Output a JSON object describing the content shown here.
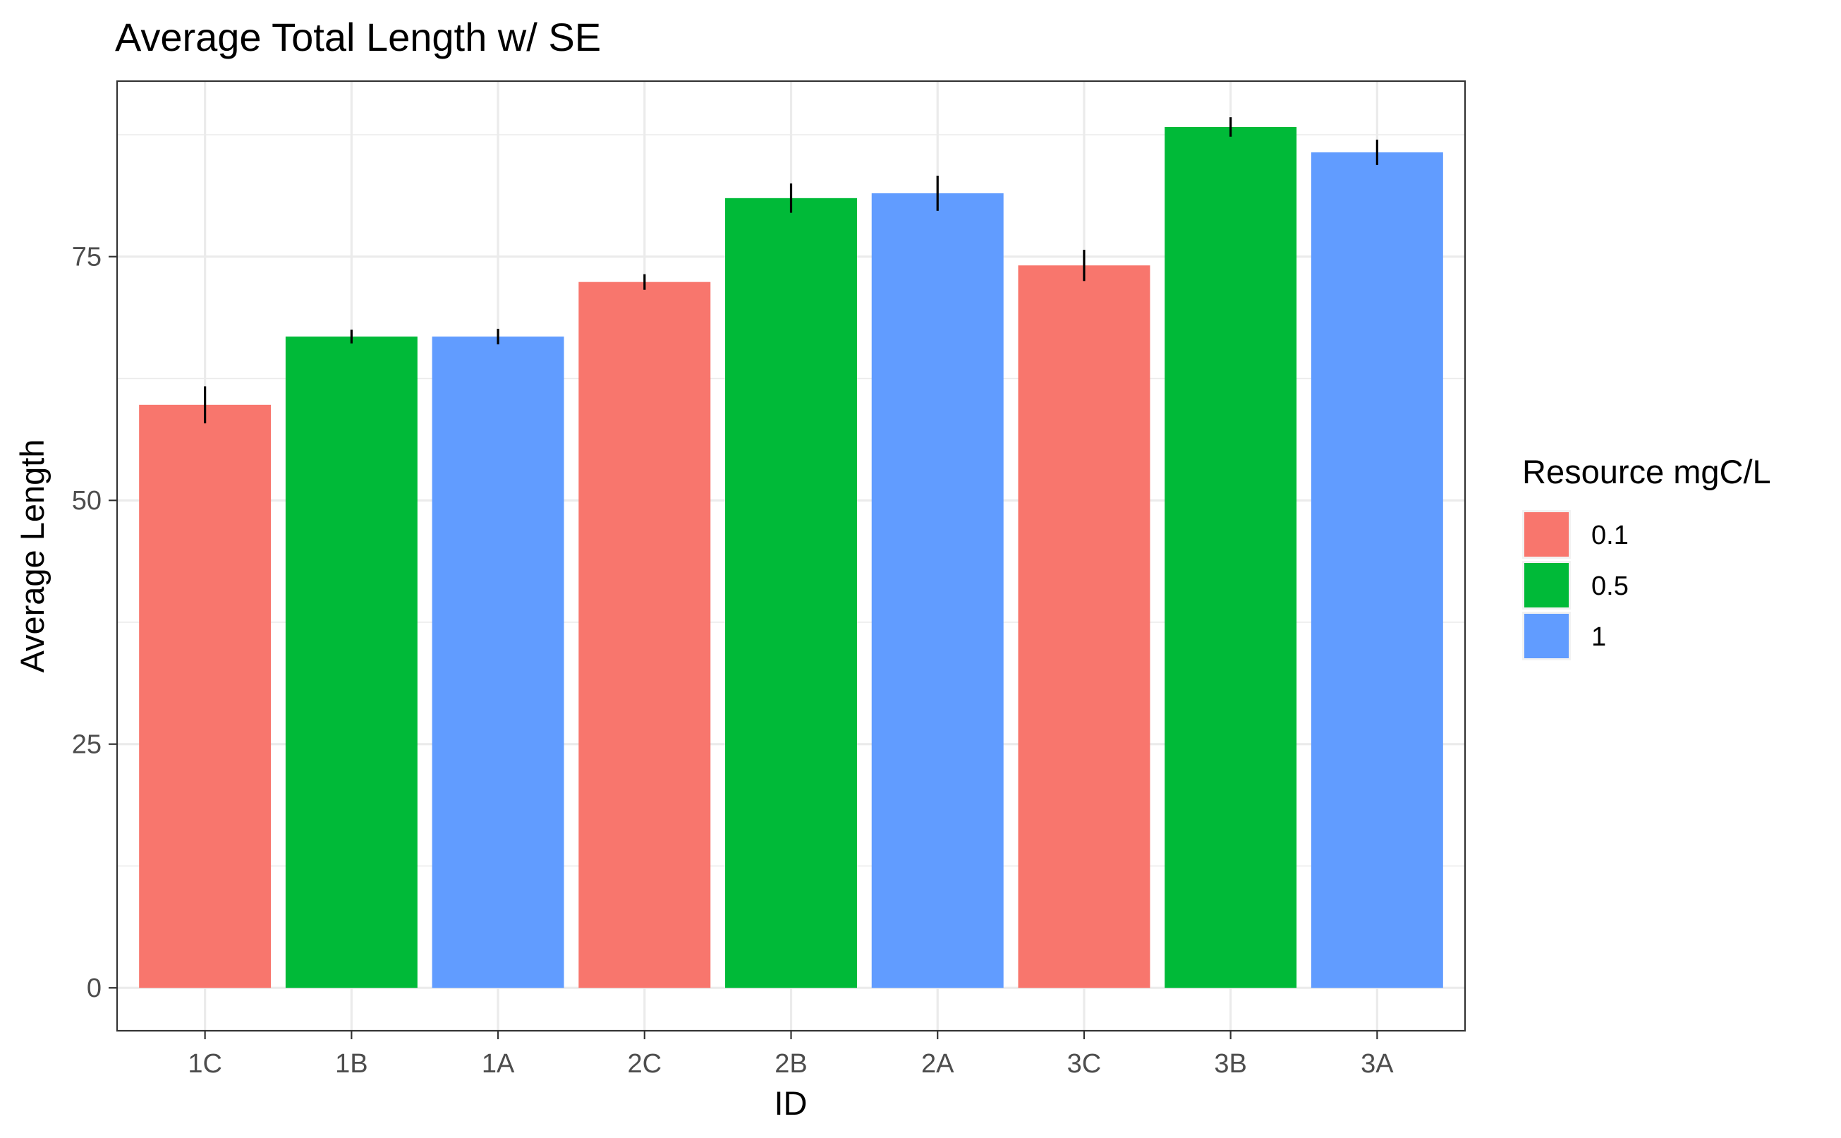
{
  "chart_data": {
    "type": "bar",
    "title": "Average Total Length w/ SE",
    "xlabel": "ID",
    "ylabel": "Average Length",
    "categories": [
      "1C",
      "1B",
      "1A",
      "2C",
      "2B",
      "2A",
      "3C",
      "3B",
      "3A"
    ],
    "values": [
      59.8,
      66.8,
      66.8,
      72.4,
      81.0,
      81.5,
      74.1,
      88.3,
      85.7
    ],
    "se": [
      1.9,
      0.7,
      0.8,
      0.8,
      1.5,
      1.8,
      1.6,
      1.0,
      1.3
    ],
    "groups": [
      "0.1",
      "0.5",
      "1",
      "0.1",
      "0.5",
      "1",
      "0.1",
      "0.5",
      "1"
    ],
    "yticks": [
      0,
      25,
      50,
      75
    ],
    "ylim": [
      -4.4,
      93
    ],
    "grid": true,
    "legend": {
      "title": "Resource mgC/L",
      "placement": "right",
      "entries": [
        {
          "label": "0.1",
          "color": "#F8766D"
        },
        {
          "label": "0.5",
          "color": "#00BA38"
        },
        {
          "label": "1",
          "color": "#619CFF"
        }
      ]
    },
    "colors": {
      "0.1": "#F8766D",
      "0.5": "#00BA38",
      "1": "#619CFF"
    }
  }
}
